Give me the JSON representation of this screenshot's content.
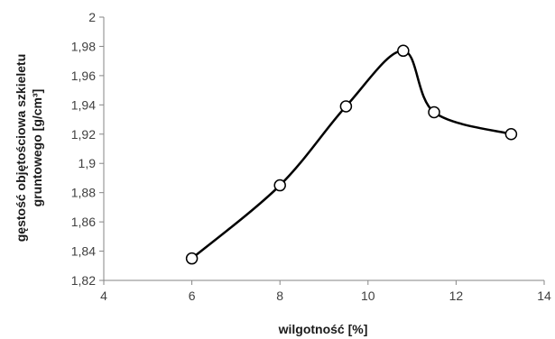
{
  "chart_data": {
    "type": "line",
    "xlabel": "wilgotność [%]",
    "ylabel_lines": [
      "gęstość objętościowa szkieletu",
      "gruntowego [g/cm³]"
    ],
    "xlim": [
      4,
      14
    ],
    "ylim": [
      1.82,
      2.0
    ],
    "x_ticks": [
      4,
      6,
      8,
      10,
      12,
      14
    ],
    "y_ticks": [
      1.82,
      1.84,
      1.86,
      1.88,
      1.9,
      1.92,
      1.94,
      1.96,
      1.98,
      2.0
    ],
    "x_tick_labels": [
      "4",
      "6",
      "8",
      "10",
      "12",
      "14"
    ],
    "y_tick_labels": [
      "1,82",
      "1,84",
      "1,86",
      "1,88",
      "1,9",
      "1,92",
      "1,94",
      "1,96",
      "1,98",
      "2"
    ],
    "grid": false,
    "smooth": true,
    "series": [
      {
        "x": [
          6.0,
          8.0,
          9.5,
          10.8,
          11.5,
          13.25
        ],
        "y": [
          1.835,
          1.885,
          1.939,
          1.977,
          1.935,
          1.92
        ],
        "line_color": "#000000",
        "marker": "circle-open"
      }
    ]
  }
}
